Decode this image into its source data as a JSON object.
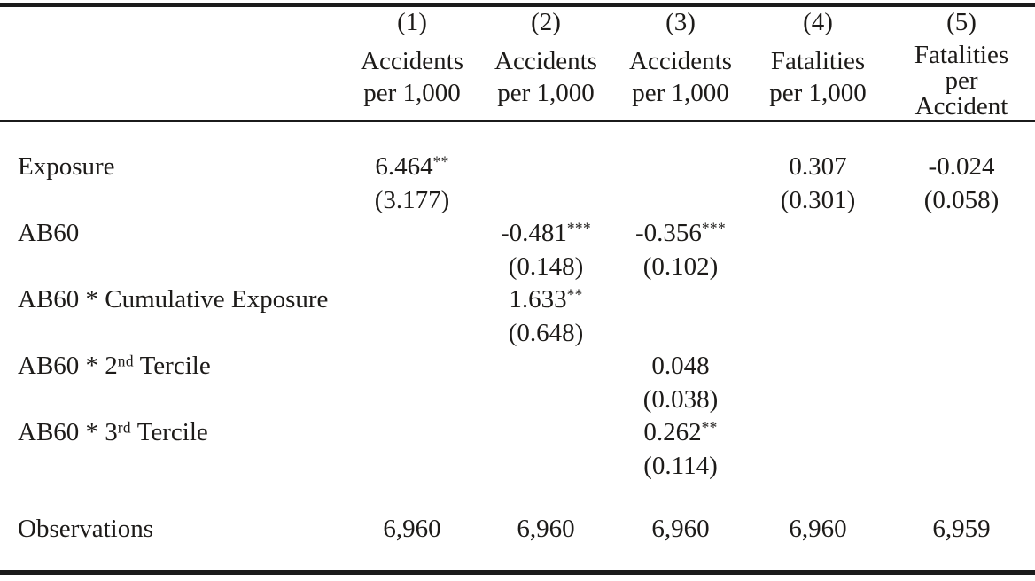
{
  "columns": [
    {
      "number": "(1)",
      "title_lines": [
        "Accidents",
        "per 1,000"
      ]
    },
    {
      "number": "(2)",
      "title_lines": [
        "Accidents",
        "per 1,000"
      ]
    },
    {
      "number": "(3)",
      "title_lines": [
        "Accidents",
        "per 1,000"
      ]
    },
    {
      "number": "(4)",
      "title_lines": [
        "Fatalities",
        "per 1,000"
      ]
    },
    {
      "number": "(5)",
      "title_lines": [
        "Fatalities",
        "per",
        "Accident"
      ]
    }
  ],
  "rows": [
    {
      "label": "Exposure",
      "estimates": [
        "6.464**",
        "",
        "",
        "0.307",
        "-0.024"
      ],
      "std_errors": [
        "(3.177)",
        "",
        "",
        "(0.301)",
        "(0.058)"
      ]
    },
    {
      "label": "AB60",
      "estimates": [
        "",
        "-0.481***",
        "-0.356***",
        "",
        ""
      ],
      "std_errors": [
        "",
        "(0.148)",
        "(0.102)",
        "",
        ""
      ]
    },
    {
      "label": "AB60 * Cumulative Exposure",
      "estimates": [
        "",
        "1.633**",
        "",
        "",
        ""
      ],
      "std_errors": [
        "",
        "(0.648)",
        "",
        "",
        ""
      ]
    },
    {
      "label": "AB60 * 2nd Tercile",
      "estimates": [
        "",
        "",
        "0.048",
        "",
        ""
      ],
      "std_errors": [
        "",
        "",
        "(0.038)",
        "",
        ""
      ]
    },
    {
      "label": "AB60 * 3rd Tercile",
      "estimates": [
        "",
        "",
        "0.262**",
        "",
        ""
      ],
      "std_errors": [
        "",
        "",
        "(0.114)",
        "",
        ""
      ]
    }
  ],
  "footer": {
    "label": "Observations",
    "values": [
      "6,960",
      "6,960",
      "6,960",
      "6,960",
      "6,959"
    ]
  },
  "colors": {
    "text": "#1d1b19",
    "rule": "#1b1b1b",
    "background": "#ffffff"
  }
}
